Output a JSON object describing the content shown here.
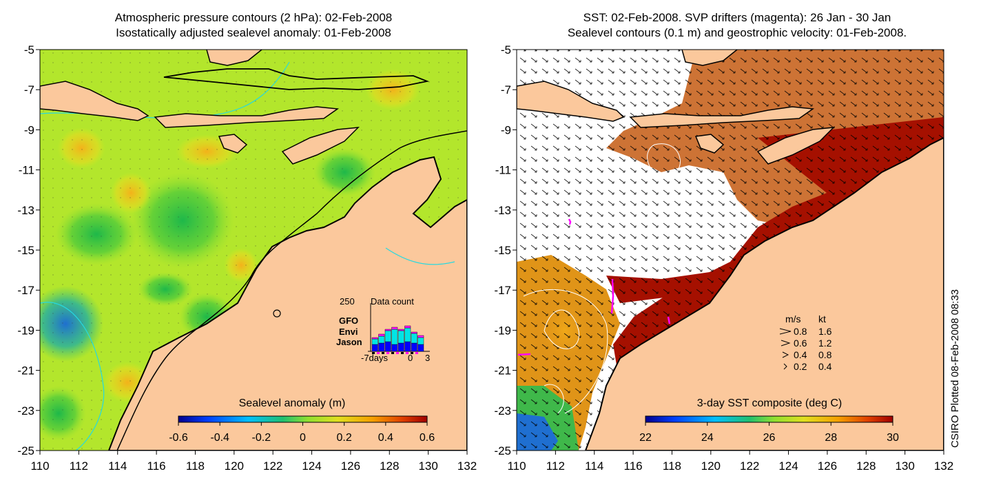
{
  "left_panel": {
    "title_line1": "Atmospheric pressure contours (2 hPa): 02-Feb-2008",
    "title_line2": "Isostatically adjusted sealevel anomaly: 01-Feb-2008",
    "colorbar_label": "Sealevel anomaly (m)",
    "colorbar_ticks": [
      "-0.6",
      "-0.4",
      "-0.2",
      "0",
      "0.2",
      "0.4",
      "0.6"
    ],
    "inset": {
      "top_value": "250",
      "title": "Data count",
      "legend": [
        {
          "label": "GFO",
          "color": "#ff00ff"
        },
        {
          "label": "Envi",
          "color": "#00e5e5"
        },
        {
          "label": "Jason",
          "color": "#0000ff"
        }
      ],
      "x_ticks": [
        "-7days",
        "0",
        "3"
      ]
    }
  },
  "right_panel": {
    "title_line1": "SST: 02-Feb-2008. SVP drifters (magenta): 26 Jan - 30 Jan",
    "title_line2": "Sealevel contours (0.1 m) and geostrophic velocity: 01-Feb-2008.",
    "colorbar_label": "3-day SST composite (deg C)",
    "colorbar_ticks": [
      "22",
      "24",
      "26",
      "28",
      "30"
    ],
    "velocity_legend": {
      "header_ms": "m/s",
      "header_kt": "kt",
      "rows": [
        {
          "ms": "0.8",
          "kt": "1.6"
        },
        {
          "ms": "0.6",
          "kt": "1.2"
        },
        {
          "ms": "0.4",
          "kt": "0.8"
        },
        {
          "ms": "0.2",
          "kt": "0.4"
        }
      ]
    }
  },
  "axes": {
    "y_ticks": [
      "-5",
      "-7",
      "-9",
      "-11",
      "-13",
      "-15",
      "-17",
      "-19",
      "-21",
      "-23",
      "-25"
    ],
    "x_ticks": [
      "110",
      "112",
      "114",
      "116",
      "118",
      "120",
      "122",
      "124",
      "126",
      "128",
      "130",
      "132"
    ]
  },
  "credit": "CSIRO Plotted 08-Feb-2008 08:33",
  "colors": {
    "land": "#fbc89c",
    "sst_warm": "#a51000",
    "sla_base": "#b8ea2a",
    "contour_cyan": "#26d9e0"
  }
}
